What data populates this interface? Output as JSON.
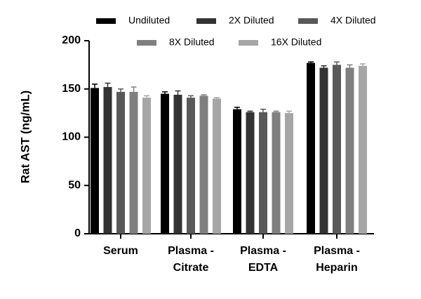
{
  "chart_data": {
    "type": "bar",
    "y_label": "Rat AST (ng/mL)",
    "categories": [
      [
        "Serum"
      ],
      [
        "Plasma -",
        "Citrate"
      ],
      [
        "Plasma -",
        "EDTA"
      ],
      [
        "Plasma -",
        "Heparin"
      ]
    ],
    "series": [
      {
        "name": "Undiluted",
        "color": "#000000",
        "values": [
          151,
          145,
          129,
          177
        ],
        "errors": [
          4,
          2,
          2,
          1
        ]
      },
      {
        "name": "2X Diluted",
        "color": "#333333",
        "values": [
          152,
          144,
          126,
          172
        ],
        "errors": [
          4,
          4,
          1,
          2
        ]
      },
      {
        "name": "4X Diluted",
        "color": "#595959",
        "values": [
          147,
          141,
          126,
          175
        ],
        "errors": [
          3,
          2,
          3,
          3
        ]
      },
      {
        "name": "8X Diluted",
        "color": "#7f7f7f",
        "values": [
          147,
          143,
          126,
          172
        ],
        "errors": [
          5,
          1,
          1,
          3
        ]
      },
      {
        "name": "16X Diluted",
        "color": "#a6a6a6",
        "values": [
          141,
          140,
          125,
          174
        ],
        "errors": [
          2,
          1,
          2,
          2
        ]
      }
    ],
    "ylim": [
      0,
      200
    ],
    "yticks": [
      0,
      50,
      100,
      150,
      200
    ]
  }
}
